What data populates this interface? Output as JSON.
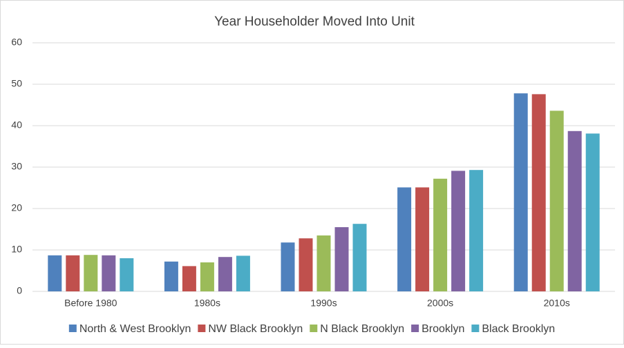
{
  "chart_data": {
    "type": "bar",
    "title": "Year Householder Moved Into Unit",
    "categories": [
      "Before 1980",
      "1980s",
      "1990s",
      "2000s",
      "2010s"
    ],
    "series": [
      {
        "name": "North & West Brooklyn",
        "color": "#4f81bd",
        "values": [
          8.7,
          7.2,
          11.8,
          25.1,
          47.8
        ]
      },
      {
        "name": "NW Black Brooklyn",
        "color": "#c0504d",
        "values": [
          8.7,
          6.1,
          12.8,
          25.1,
          47.6
        ]
      },
      {
        "name": "N Black Brooklyn",
        "color": "#9bbb59",
        "values": [
          8.8,
          7.0,
          13.5,
          27.2,
          43.6
        ]
      },
      {
        "name": "Brooklyn",
        "color": "#8064a2",
        "values": [
          8.7,
          8.3,
          15.5,
          29.1,
          38.7
        ]
      },
      {
        "name": "Black Brooklyn",
        "color": "#4bacc6",
        "values": [
          8.0,
          8.6,
          16.3,
          29.3,
          38.1
        ]
      }
    ],
    "ylim": [
      0,
      60
    ],
    "yticks": [
      0,
      10,
      20,
      30,
      40,
      50,
      60
    ],
    "grid": true,
    "legend": "bottom"
  }
}
